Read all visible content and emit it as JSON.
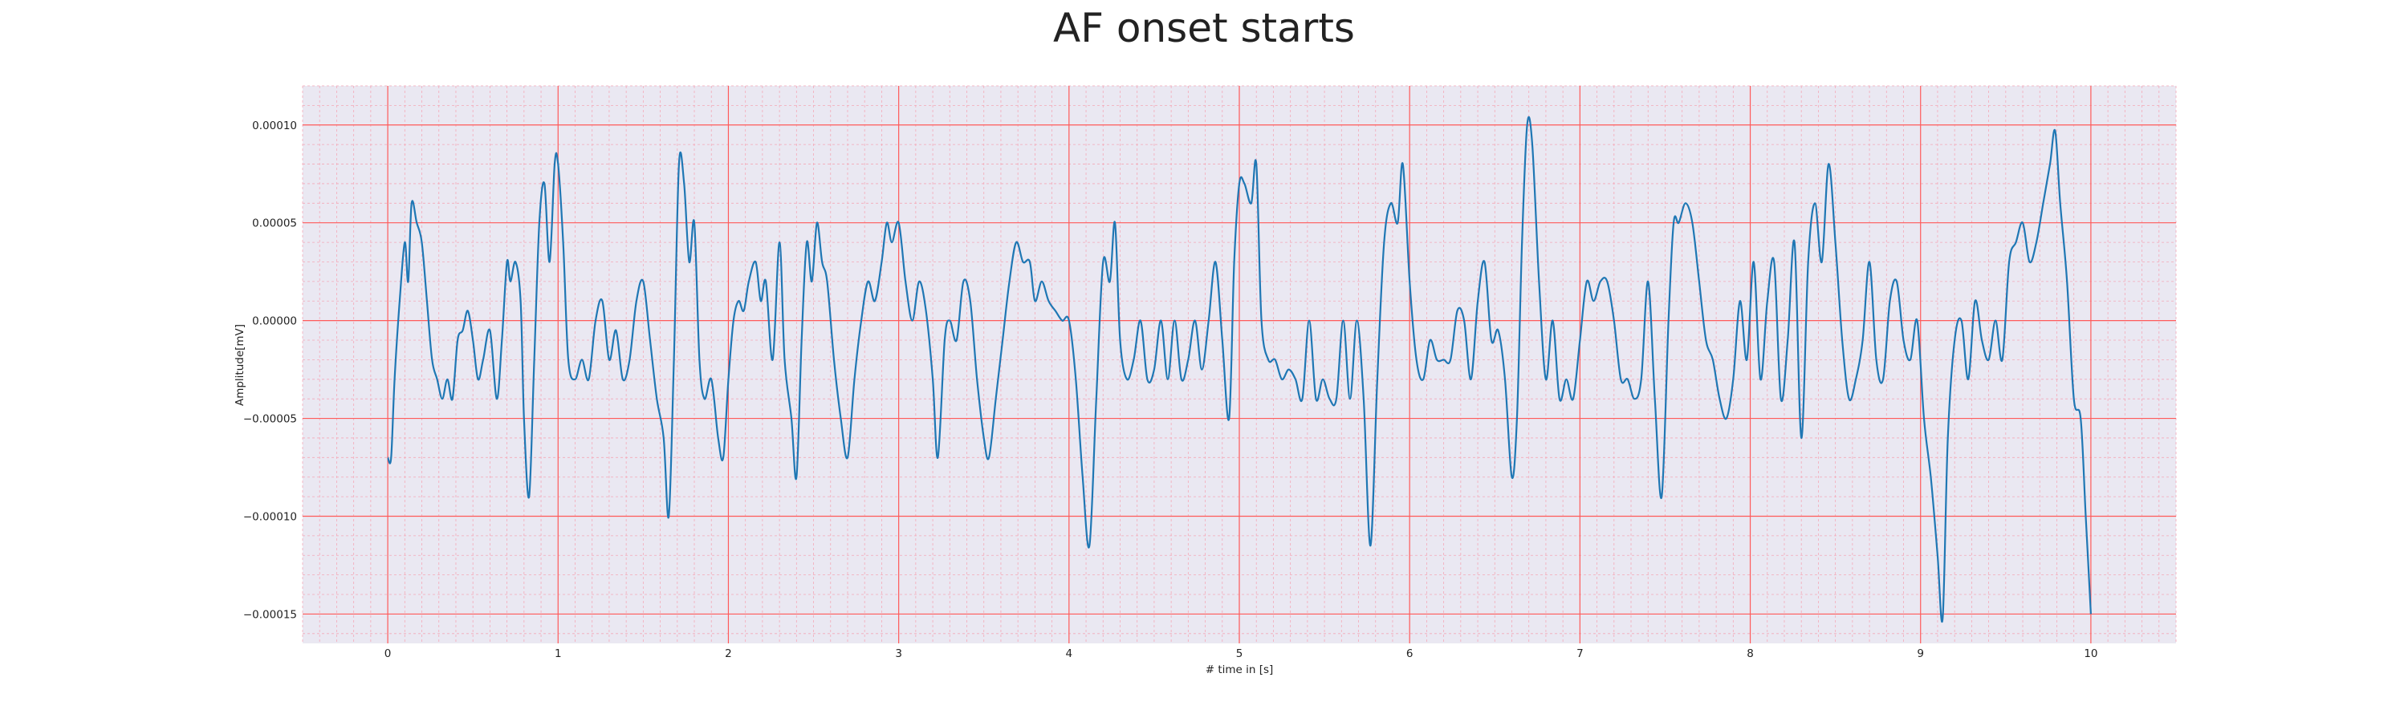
{
  "chart_data": {
    "type": "line",
    "title": "AF onset starts",
    "xlabel": "# time in [s]",
    "ylabel": "Amplitude[mV]",
    "xlim": [
      -0.5,
      10.5
    ],
    "ylim": [
      -0.000165,
      0.00012
    ],
    "x_ticks": [
      0,
      1,
      2,
      3,
      4,
      5,
      6,
      7,
      8,
      9,
      10
    ],
    "x_tick_labels": [
      "0",
      "1",
      "2",
      "3",
      "4",
      "5",
      "6",
      "7",
      "8",
      "9",
      "10"
    ],
    "y_ticks": [
      0.0001,
      5e-05,
      0.0,
      -5e-05,
      -0.0001,
      -0.00015
    ],
    "y_tick_labels": [
      "0.00010",
      "0.00005",
      "0.00000",
      "−0.00005",
      "−0.00010",
      "−0.00015"
    ],
    "grid": {
      "major": true,
      "minor": true,
      "major_color": "#ff5a5a",
      "minor_color": "#f4a9b8"
    },
    "background_color": "#eae8f2",
    "series": [
      {
        "color": "#1f77b4",
        "points": [
          [
            0.0,
            -7e-05
          ],
          [
            0.02,
            -7e-05
          ],
          [
            0.04,
            -3e-05
          ],
          [
            0.07,
            1e-05
          ],
          [
            0.1,
            4e-05
          ],
          [
            0.12,
            2e-05
          ],
          [
            0.14,
            6e-05
          ],
          [
            0.17,
            5e-05
          ],
          [
            0.2,
            4e-05
          ],
          [
            0.23,
            1e-05
          ],
          [
            0.26,
            -2e-05
          ],
          [
            0.29,
            -3e-05
          ],
          [
            0.32,
            -4e-05
          ],
          [
            0.35,
            -3e-05
          ],
          [
            0.38,
            -4e-05
          ],
          [
            0.41,
            -1e-05
          ],
          [
            0.44,
            -5e-06
          ],
          [
            0.47,
            5e-06
          ],
          [
            0.5,
            -1e-05
          ],
          [
            0.53,
            -3e-05
          ],
          [
            0.56,
            -2e-05
          ],
          [
            0.6,
            -5e-06
          ],
          [
            0.64,
            -4e-05
          ],
          [
            0.67,
            -1e-05
          ],
          [
            0.7,
            3e-05
          ],
          [
            0.72,
            2e-05
          ],
          [
            0.75,
            3e-05
          ],
          [
            0.78,
            1e-05
          ],
          [
            0.8,
            -5e-05
          ],
          [
            0.83,
            -9e-05
          ],
          [
            0.86,
            -2e-05
          ],
          [
            0.89,
            5e-05
          ],
          [
            0.92,
            7e-05
          ],
          [
            0.95,
            3e-05
          ],
          [
            0.98,
            8e-05
          ],
          [
            1.0,
            8e-05
          ],
          [
            1.03,
            4e-05
          ],
          [
            1.06,
            -2e-05
          ],
          [
            1.1,
            -3e-05
          ],
          [
            1.14,
            -2e-05
          ],
          [
            1.18,
            -3e-05
          ],
          [
            1.22,
            0.0
          ],
          [
            1.26,
            1e-05
          ],
          [
            1.3,
            -2e-05
          ],
          [
            1.34,
            -5e-06
          ],
          [
            1.38,
            -3e-05
          ],
          [
            1.42,
            -2e-05
          ],
          [
            1.46,
            1e-05
          ],
          [
            1.5,
            2e-05
          ],
          [
            1.54,
            -1e-05
          ],
          [
            1.58,
            -4e-05
          ],
          [
            1.62,
            -6e-05
          ],
          [
            1.65,
            -0.0001
          ],
          [
            1.68,
            -2e-05
          ],
          [
            1.71,
            8e-05
          ],
          [
            1.74,
            7e-05
          ],
          [
            1.77,
            3e-05
          ],
          [
            1.8,
            5e-05
          ],
          [
            1.83,
            -2e-05
          ],
          [
            1.86,
            -4e-05
          ],
          [
            1.9,
            -3e-05
          ],
          [
            1.94,
            -6e-05
          ],
          [
            1.97,
            -7e-05
          ],
          [
            2.0,
            -3e-05
          ],
          [
            2.03,
            0.0
          ],
          [
            2.06,
            1e-05
          ],
          [
            2.09,
            5e-06
          ],
          [
            2.12,
            2e-05
          ],
          [
            2.16,
            3e-05
          ],
          [
            2.19,
            1e-05
          ],
          [
            2.22,
            2e-05
          ],
          [
            2.26,
            -2e-05
          ],
          [
            2.3,
            4e-05
          ],
          [
            2.33,
            -2e-05
          ],
          [
            2.37,
            -5e-05
          ],
          [
            2.4,
            -8e-05
          ],
          [
            2.43,
            -1e-05
          ],
          [
            2.46,
            4e-05
          ],
          [
            2.49,
            2e-05
          ],
          [
            2.52,
            5e-05
          ],
          [
            2.55,
            3e-05
          ],
          [
            2.58,
            2e-05
          ],
          [
            2.62,
            -2e-05
          ],
          [
            2.66,
            -5e-05
          ],
          [
            2.7,
            -7e-05
          ],
          [
            2.74,
            -3e-05
          ],
          [
            2.78,
            0.0
          ],
          [
            2.82,
            2e-05
          ],
          [
            2.86,
            1e-05
          ],
          [
            2.9,
            3e-05
          ],
          [
            2.93,
            5e-05
          ],
          [
            2.96,
            4e-05
          ],
          [
            3.0,
            5e-05
          ],
          [
            3.04,
            2e-05
          ],
          [
            3.08,
            0.0
          ],
          [
            3.12,
            2e-05
          ],
          [
            3.16,
            5e-06
          ],
          [
            3.2,
            -3e-05
          ],
          [
            3.23,
            -7e-05
          ],
          [
            3.27,
            -1e-05
          ],
          [
            3.3,
            0.0
          ],
          [
            3.34,
            -1e-05
          ],
          [
            3.38,
            2e-05
          ],
          [
            3.42,
            1e-05
          ],
          [
            3.46,
            -3e-05
          ],
          [
            3.5,
            -6e-05
          ],
          [
            3.53,
            -7e-05
          ],
          [
            3.57,
            -4e-05
          ],
          [
            3.61,
            -1e-05
          ],
          [
            3.65,
            2e-05
          ],
          [
            3.69,
            4e-05
          ],
          [
            3.73,
            3e-05
          ],
          [
            3.77,
            3e-05
          ],
          [
            3.8,
            1e-05
          ],
          [
            3.84,
            2e-05
          ],
          [
            3.88,
            1e-05
          ],
          [
            3.92,
            5e-06
          ],
          [
            3.96,
            0.0
          ],
          [
            4.0,
            0.0
          ],
          [
            4.04,
            -3e-05
          ],
          [
            4.08,
            -8e-05
          ],
          [
            4.12,
            -0.000115
          ],
          [
            4.16,
            -4e-05
          ],
          [
            4.2,
            3e-05
          ],
          [
            4.24,
            2e-05
          ],
          [
            4.27,
            5e-05
          ],
          [
            4.3,
            -1e-05
          ],
          [
            4.34,
            -3e-05
          ],
          [
            4.38,
            -2e-05
          ],
          [
            4.42,
            0.0
          ],
          [
            4.46,
            -3e-05
          ],
          [
            4.5,
            -2.5e-05
          ],
          [
            4.54,
            0.0
          ],
          [
            4.58,
            -3e-05
          ],
          [
            4.62,
            0.0
          ],
          [
            4.66,
            -3e-05
          ],
          [
            4.7,
            -2e-05
          ],
          [
            4.74,
            0.0
          ],
          [
            4.78,
            -2.5e-05
          ],
          [
            4.82,
            0.0
          ],
          [
            4.86,
            3e-05
          ],
          [
            4.9,
            -1e-05
          ],
          [
            4.94,
            -5e-05
          ],
          [
            4.97,
            3e-05
          ],
          [
            5.0,
            7e-05
          ],
          [
            5.03,
            7e-05
          ],
          [
            5.07,
            6e-05
          ],
          [
            5.1,
            8e-05
          ],
          [
            5.13,
            0.0
          ],
          [
            5.17,
            -2e-05
          ],
          [
            5.21,
            -2e-05
          ],
          [
            5.25,
            -3e-05
          ],
          [
            5.29,
            -2.5e-05
          ],
          [
            5.33,
            -3e-05
          ],
          [
            5.37,
            -4e-05
          ],
          [
            5.41,
            0.0
          ],
          [
            5.45,
            -4e-05
          ],
          [
            5.49,
            -3e-05
          ],
          [
            5.53,
            -4e-05
          ],
          [
            5.57,
            -4e-05
          ],
          [
            5.61,
            0.0
          ],
          [
            5.65,
            -4e-05
          ],
          [
            5.69,
            0.0
          ],
          [
            5.73,
            -4e-05
          ],
          [
            5.77,
            -0.000115
          ],
          [
            5.81,
            -3e-05
          ],
          [
            5.85,
            4e-05
          ],
          [
            5.89,
            6e-05
          ],
          [
            5.93,
            5e-05
          ],
          [
            5.96,
            8e-05
          ],
          [
            6.0,
            2e-05
          ],
          [
            6.04,
            -2e-05
          ],
          [
            6.08,
            -3e-05
          ],
          [
            6.12,
            -1e-05
          ],
          [
            6.16,
            -2e-05
          ],
          [
            6.2,
            -2e-05
          ],
          [
            6.24,
            -2e-05
          ],
          [
            6.28,
            5e-06
          ],
          [
            6.32,
            0.0
          ],
          [
            6.36,
            -3e-05
          ],
          [
            6.4,
            1e-05
          ],
          [
            6.44,
            3e-05
          ],
          [
            6.48,
            -1e-05
          ],
          [
            6.52,
            -5e-06
          ],
          [
            6.56,
            -3e-05
          ],
          [
            6.6,
            -8e-05
          ],
          [
            6.63,
            -5e-05
          ],
          [
            6.66,
            4e-05
          ],
          [
            6.69,
            0.0001
          ],
          [
            6.72,
            9e-05
          ],
          [
            6.76,
            2e-05
          ],
          [
            6.8,
            -3e-05
          ],
          [
            6.84,
            0.0
          ],
          [
            6.88,
            -4e-05
          ],
          [
            6.92,
            -3e-05
          ],
          [
            6.96,
            -4e-05
          ],
          [
            7.0,
            -1e-05
          ],
          [
            7.04,
            2e-05
          ],
          [
            7.08,
            1e-05
          ],
          [
            7.12,
            2e-05
          ],
          [
            7.16,
            2e-05
          ],
          [
            7.2,
            0.0
          ],
          [
            7.24,
            -3e-05
          ],
          [
            7.28,
            -3e-05
          ],
          [
            7.32,
            -4e-05
          ],
          [
            7.36,
            -3e-05
          ],
          [
            7.4,
            2e-05
          ],
          [
            7.44,
            -4e-05
          ],
          [
            7.48,
            -9e-05
          ],
          [
            7.52,
            0.0
          ],
          [
            7.55,
            5e-05
          ],
          [
            7.58,
            5e-05
          ],
          [
            7.62,
            6e-05
          ],
          [
            7.66,
            5e-05
          ],
          [
            7.7,
            2e-05
          ],
          [
            7.74,
            -1e-05
          ],
          [
            7.78,
            -2e-05
          ],
          [
            7.82,
            -4e-05
          ],
          [
            7.86,
            -5e-05
          ],
          [
            7.9,
            -3e-05
          ],
          [
            7.94,
            1e-05
          ],
          [
            7.98,
            -2e-05
          ],
          [
            8.02,
            3e-05
          ],
          [
            8.06,
            -3e-05
          ],
          [
            8.1,
            1e-05
          ],
          [
            8.14,
            3e-05
          ],
          [
            8.18,
            -4e-05
          ],
          [
            8.22,
            -1e-05
          ],
          [
            8.26,
            4e-05
          ],
          [
            8.3,
            -6e-05
          ],
          [
            8.34,
            3e-05
          ],
          [
            8.38,
            6e-05
          ],
          [
            8.42,
            3e-05
          ],
          [
            8.46,
            8e-05
          ],
          [
            8.5,
            4e-05
          ],
          [
            8.54,
            -1e-05
          ],
          [
            8.58,
            -4e-05
          ],
          [
            8.62,
            -3e-05
          ],
          [
            8.66,
            -1e-05
          ],
          [
            8.7,
            3e-05
          ],
          [
            8.74,
            -2e-05
          ],
          [
            8.78,
            -3e-05
          ],
          [
            8.82,
            1e-05
          ],
          [
            8.86,
            2e-05
          ],
          [
            8.9,
            -1e-05
          ],
          [
            8.94,
            -2e-05
          ],
          [
            8.98,
            0.0
          ],
          [
            9.02,
            -5e-05
          ],
          [
            9.06,
            -8e-05
          ],
          [
            9.1,
            -0.00012
          ],
          [
            9.13,
            -0.000152
          ],
          [
            9.16,
            -6e-05
          ],
          [
            9.2,
            -1e-05
          ],
          [
            9.24,
            0.0
          ],
          [
            9.28,
            -3e-05
          ],
          [
            9.32,
            1e-05
          ],
          [
            9.36,
            -1e-05
          ],
          [
            9.4,
            -2e-05
          ],
          [
            9.44,
            0.0
          ],
          [
            9.48,
            -2e-05
          ],
          [
            9.52,
            3e-05
          ],
          [
            9.56,
            4e-05
          ],
          [
            9.6,
            5e-05
          ],
          [
            9.64,
            3e-05
          ],
          [
            9.68,
            4e-05
          ],
          [
            9.72,
            6e-05
          ],
          [
            9.76,
            8e-05
          ],
          [
            9.79,
            9.7e-05
          ],
          [
            9.82,
            6e-05
          ],
          [
            9.86,
            2e-05
          ],
          [
            9.9,
            -4e-05
          ],
          [
            9.94,
            -5e-05
          ],
          [
            9.97,
            -0.0001
          ],
          [
            10.0,
            -0.00015
          ]
        ]
      }
    ]
  }
}
